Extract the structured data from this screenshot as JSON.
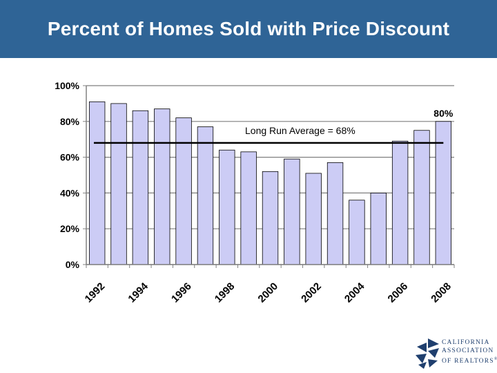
{
  "page": {
    "title": "Percent of Homes Sold with Price Discount"
  },
  "chart_data": {
    "type": "bar",
    "categories": [
      "1992",
      "1993",
      "1994",
      "1995",
      "1996",
      "1997",
      "1998",
      "1999",
      "2000",
      "2001",
      "2002",
      "2003",
      "2004",
      "2005",
      "2006",
      "2007",
      "2008"
    ],
    "values": [
      91,
      90,
      86,
      87,
      82,
      77,
      64,
      63,
      52,
      59,
      51,
      57,
      36,
      40,
      69,
      75,
      80
    ],
    "x_tick_labels": [
      "1992",
      "1994",
      "1996",
      "1998",
      "2000",
      "2002",
      "2004",
      "2006",
      "2008"
    ],
    "y_tick_labels": [
      "0%",
      "20%",
      "40%",
      "60%",
      "80%",
      "100%"
    ],
    "ylim": [
      0,
      100
    ],
    "yunit": "%",
    "grid": true,
    "bar_color": "#ccccf5",
    "bar_edge_color": "#000000",
    "average": {
      "value": 68,
      "label": "Long Run Average = 68%"
    },
    "data_labels": [
      {
        "category": "2008",
        "text": "80%"
      }
    ]
  },
  "logo": {
    "lines": [
      "CALIFORNIA",
      "ASSOCIATION",
      "OF REALTORS"
    ],
    "mark": "®",
    "color": "#1f3f6e"
  }
}
